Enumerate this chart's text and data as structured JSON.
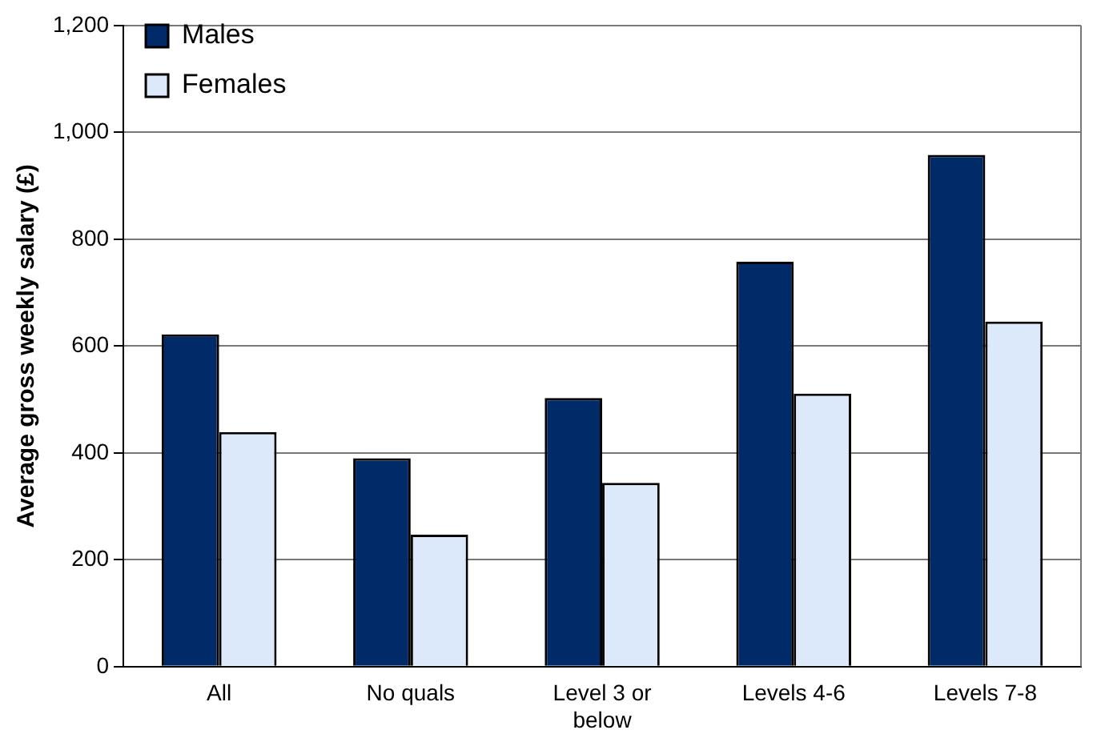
{
  "chart_data": {
    "type": "bar",
    "ylabel": "Average gross weekly salary (£)",
    "categories": [
      "All",
      "No quals",
      "Level 3 or below",
      "Levels 4-6",
      "Levels 7-8"
    ],
    "series": [
      {
        "name": "Males",
        "color": "#002a68",
        "values": [
          622,
          390,
          503,
          758,
          958
        ]
      },
      {
        "name": "Females",
        "color": "#dce9fb",
        "values": [
          439,
          247,
          344,
          511,
          646
        ]
      }
    ],
    "ylim": [
      0,
      1200
    ],
    "yticks": [
      0,
      200,
      400,
      600,
      800,
      {
        "value": 1000,
        "label": "1,000"
      },
      {
        "value": 1200,
        "label": "1,200"
      }
    ],
    "grid": "y",
    "legend": "top left"
  }
}
